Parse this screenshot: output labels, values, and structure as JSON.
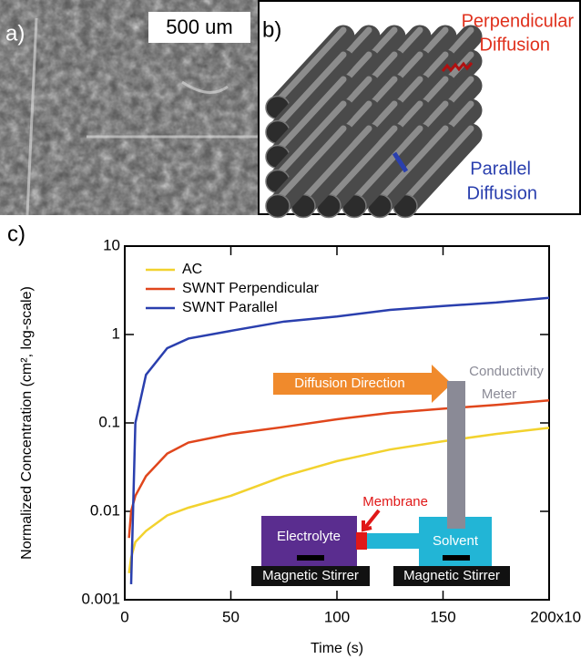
{
  "panels": {
    "a": "a)",
    "b": "b)",
    "c": "c)",
    "scale_bar": "500 um",
    "perpendicular": [
      "Perpendicular",
      "Diffusion"
    ],
    "parallel": [
      "Parallel",
      "Diffusion"
    ]
  },
  "inset": {
    "arrow": "Diffusion Direction",
    "membrane": "Membrane",
    "meter": [
      "Conductivity",
      "Meter"
    ],
    "left": "Electrolyte",
    "right": "Solvent",
    "stirrers": [
      "Magnetic Stirrer",
      "Magnetic Stirrer"
    ]
  },
  "chart_data": {
    "type": "line",
    "log_y": true,
    "x_label": "Time (s)",
    "y_label": "Normalized Concentration (cm², log-scale)",
    "x": [
      2000,
      3000,
      5000,
      10000,
      20000,
      30000,
      50000,
      75000,
      100000,
      125000,
      150000,
      175000,
      200000
    ],
    "series": [
      {
        "name": "AC",
        "color": "#f2d22e",
        "values": [
          0.002,
          0.003,
          0.0045,
          0.006,
          0.009,
          0.011,
          0.015,
          0.025,
          0.037,
          0.05,
          0.062,
          0.075,
          0.088
        ]
      },
      {
        "name": "SWNT Perpendicular",
        "color": "#e0461c",
        "values": [
          0.005,
          0.01,
          0.015,
          0.025,
          0.045,
          0.06,
          0.075,
          0.09,
          0.11,
          0.13,
          0.145,
          0.16,
          0.18
        ]
      },
      {
        "name": "SWNT Parallel",
        "color": "#2a3fae",
        "values": [
          null,
          0.0015,
          0.1,
          0.35,
          0.7,
          0.9,
          1.1,
          1.4,
          1.6,
          1.9,
          2.1,
          2.3,
          2.6
        ]
      }
    ],
    "xlim": [
      0,
      200000
    ],
    "xticks": [
      0,
      {
        "value": 50000,
        "label": "50"
      },
      {
        "value": 100000,
        "label": "100"
      },
      {
        "value": 150000,
        "label": "150"
      },
      {
        "value": 200000,
        "label": "200x10³"
      }
    ],
    "ylim": [
      0.001,
      10
    ],
    "yticks": [
      0.001,
      0.01,
      0.1,
      1,
      10
    ],
    "legend": "upper-left"
  }
}
